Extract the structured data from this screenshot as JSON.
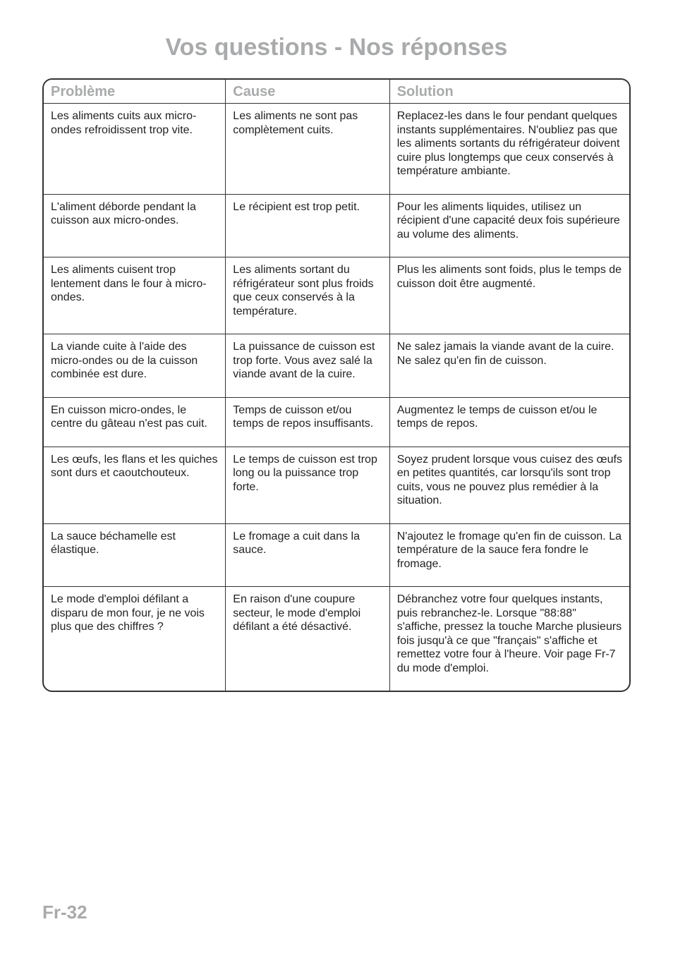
{
  "page": {
    "title": "Vos questions - Nos réponses",
    "footer": "Fr-32"
  },
  "table": {
    "headers": {
      "probleme": "Problème",
      "cause": "Cause",
      "solution": "Solution"
    },
    "rows": [
      {
        "probleme": "Les aliments cuits aux micro-ondes refroidissent trop vite.",
        "cause": "Les aliments ne sont pas complètement cuits.",
        "solution": "Replacez-les dans le four pendant quelques instants supplémentaires. N'oubliez pas que les aliments sortants du réfrigérateur doivent cuire plus longtemps que ceux conservés à température ambiante."
      },
      {
        "probleme": "L'aliment déborde pendant la cuisson aux micro-ondes.",
        "cause": "Le récipient est trop petit.",
        "solution": "Pour les aliments liquides, utilisez un récipient d'une capacité deux fois supérieure au volume des aliments."
      },
      {
        "probleme": "Les aliments cuisent trop lentement dans le four à micro-ondes.",
        "cause": "Les aliments sortant du réfrigérateur sont plus froids que ceux conservés à la température.",
        "solution": "Plus les aliments sont foids, plus le temps de cuisson doit être augmenté."
      },
      {
        "probleme": "La viande cuite à l'aide des micro-ondes ou de la cuisson combinée est dure.",
        "cause": "La puissance de cuisson est trop forte. Vous avez salé la viande avant de la cuire.",
        "solution": "Ne salez jamais la viande avant de la cuire. Ne salez qu'en fin de cuisson."
      },
      {
        "probleme": "En cuisson micro-ondes, le centre du gâteau n'est pas cuit.",
        "cause": "Temps de cuisson et/ou temps de repos insuffisants.",
        "solution": "Augmentez le temps de cuisson et/ou le temps de repos."
      },
      {
        "probleme": "Les œufs, les flans et les quiches sont durs et caoutchouteux.",
        "cause": "Le temps de cuisson est trop long ou la puissance trop forte.",
        "solution": "Soyez prudent lorsque vous cuisez des œufs en petites quantités, car lorsqu'ils sont trop cuits, vous ne pouvez plus remédier à la situation."
      },
      {
        "probleme": "La sauce béchamelle est élastique.",
        "cause": "Le fromage a cuit dans la sauce.",
        "solution": "N'ajoutez le fromage qu'en fin de cuisson. La température de la sauce fera fondre le fromage."
      },
      {
        "probleme": "Le mode d'emploi défilant a disparu de mon four, je ne vois plus que des chiffres ?",
        "cause": "En raison d'une coupure secteur, le mode d'emploi défilant a été désactivé.",
        "solution": "Débranchez votre four quelques instants, puis rebranchez-le. Lorsque \"88:88\" s'affiche, pressez la touche Marche plusieurs fois jusqu'à ce que \"français\" s'affiche et remettez votre four à l'heure. Voir page Fr-7 du mode d'emploi."
      }
    ]
  }
}
